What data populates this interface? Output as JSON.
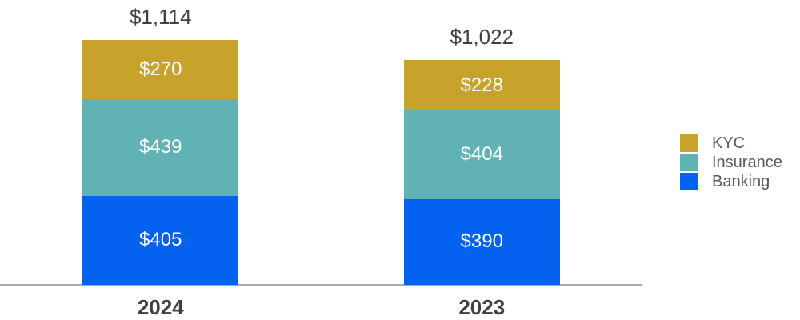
{
  "chart_data": {
    "type": "bar",
    "stacked": true,
    "title": "",
    "xlabel": "",
    "ylabel": "",
    "grid": false,
    "legend_position": "right",
    "categories": [
      "2024",
      "2023"
    ],
    "series": [
      {
        "name": "Banking",
        "color": "#0561f0",
        "values": [
          405,
          390
        ],
        "labels": [
          "$405",
          "$390"
        ]
      },
      {
        "name": "Insurance",
        "color": "#60b2b5",
        "values": [
          439,
          404
        ],
        "labels": [
          "$439",
          "$404"
        ]
      },
      {
        "name": "KYC",
        "color": "#c7a32b",
        "values": [
          270,
          228
        ],
        "labels": [
          "$270",
          "$228"
        ]
      }
    ],
    "totals": [
      1114,
      1022
    ],
    "total_labels": [
      "$1,114",
      "$1,022"
    ],
    "legend": [
      "KYC",
      "Insurance",
      "Banking"
    ],
    "colors": {
      "axis": "#a9a9a9",
      "total_label_text": "#404040",
      "segment_label_text": "#ffffff",
      "tick_label_text": "#404040",
      "legend_text": "#595959"
    }
  }
}
